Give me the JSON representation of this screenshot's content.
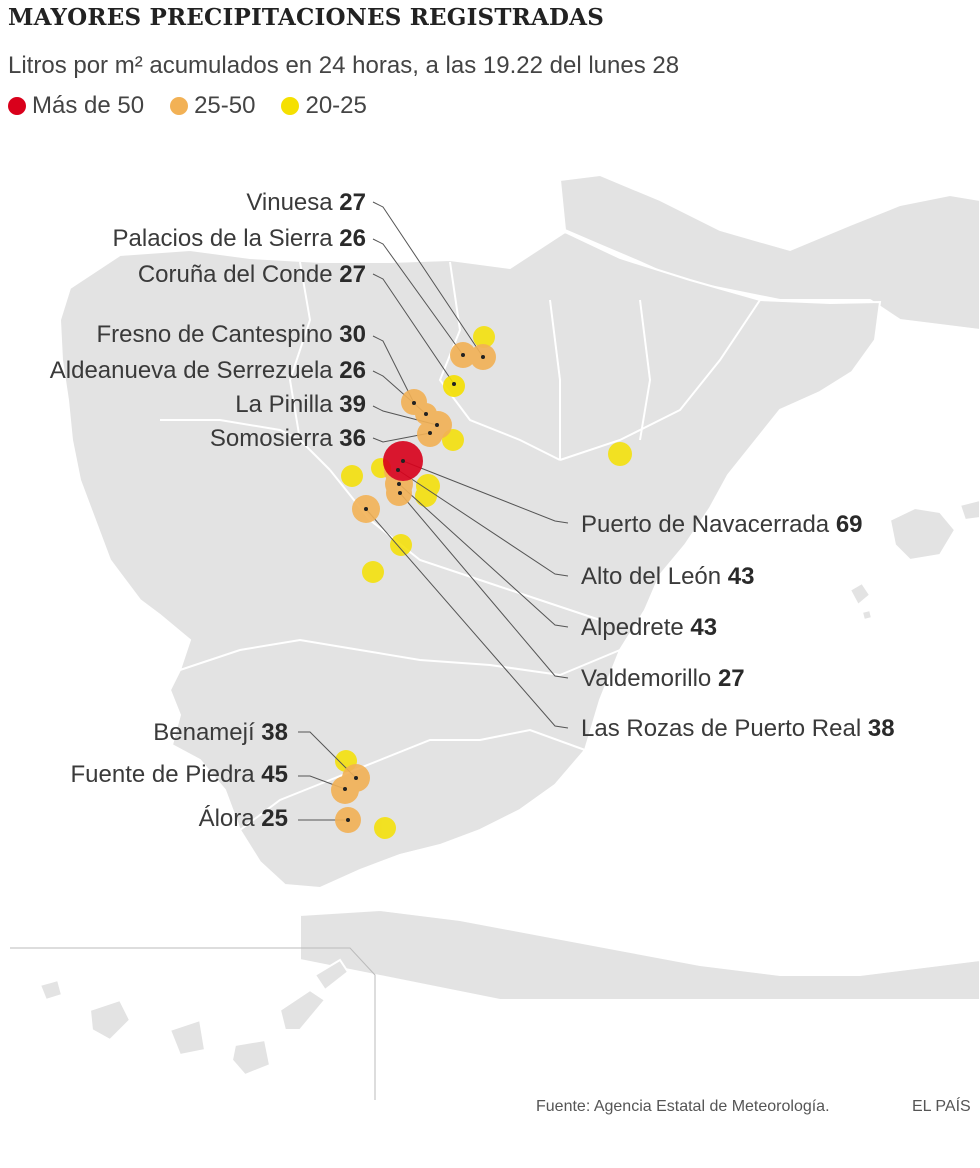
{
  "title": "MAYORES PRECIPITACIONES REGISTRADAS",
  "subtitle": "Litros por m² acumulados en 24 horas, a las 19.22 del lunes 28",
  "legend": [
    {
      "label": "Más de 50",
      "color": "#d9001b"
    },
    {
      "label": "25-50",
      "color": "#f2b155"
    },
    {
      "label": "20-25",
      "color": "#f5e000"
    }
  ],
  "labeled_stations": [
    {
      "name": "Vinuesa",
      "value": "27"
    },
    {
      "name": "Palacios de la Sierra",
      "value": "26"
    },
    {
      "name": "Coruña del Conde",
      "value": "27"
    },
    {
      "name": "Fresno de Cantespino",
      "value": "30"
    },
    {
      "name": "Aldeanueva de Serrezuela",
      "value": "26"
    },
    {
      "name": "La Pinilla",
      "value": "39"
    },
    {
      "name": "Somosierra",
      "value": "36"
    },
    {
      "name": "Puerto de Navacerrada",
      "value": "69"
    },
    {
      "name": "Alto del León",
      "value": "43"
    },
    {
      "name": "Alpedrete",
      "value": "43"
    },
    {
      "name": "Valdemorillo",
      "value": "27"
    },
    {
      "name": "Las Rozas de Puerto Real",
      "value": "38"
    },
    {
      "name": "Benamejí",
      "value": "38"
    },
    {
      "name": "Fuente de Piedra",
      "value": "45"
    },
    {
      "name": "Álora",
      "value": "25"
    }
  ],
  "footer": {
    "source": "Fuente: Agencia Estatal de Meteorología.",
    "brand": "EL PAÍS"
  }
}
